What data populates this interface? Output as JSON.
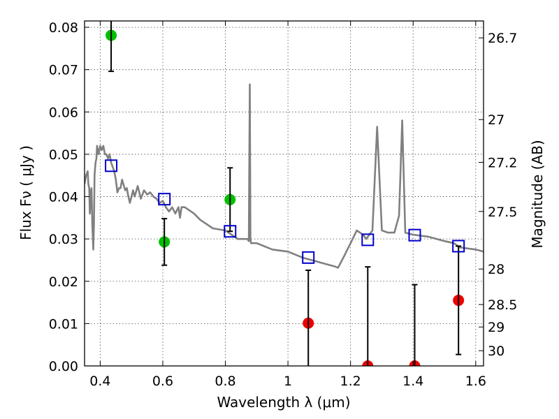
{
  "chart_data": {
    "type": "scatter",
    "xlabel": "Wavelength  λ (μm)",
    "ylabel": "Flux  Fν  ( μJy )",
    "ylabel_right": "Magnitude (AB)",
    "xlim": [
      0.35,
      1.625
    ],
    "ylim": [
      0.0,
      0.0815
    ],
    "grid": true,
    "x_ticks": [
      {
        "value": 0.4,
        "label": "0.4"
      },
      {
        "value": 0.6,
        "label": "0.6"
      },
      {
        "value": 0.8,
        "label": "0.8"
      },
      {
        "value": 1.0,
        "label": "1"
      },
      {
        "value": 1.2,
        "label": "1.2"
      },
      {
        "value": 1.4,
        "label": "1.4"
      },
      {
        "value": 1.6,
        "label": "1.6"
      }
    ],
    "y_ticks": [
      {
        "value": 0.0,
        "label": "0.00"
      },
      {
        "value": 0.01,
        "label": "0.01"
      },
      {
        "value": 0.02,
        "label": "0.02"
      },
      {
        "value": 0.03,
        "label": "0.03"
      },
      {
        "value": 0.04,
        "label": "0.04"
      },
      {
        "value": 0.05,
        "label": "0.05"
      },
      {
        "value": 0.06,
        "label": "0.06"
      },
      {
        "value": 0.07,
        "label": "0.07"
      },
      {
        "value": 0.08,
        "label": "0.08"
      }
    ],
    "right_ticks": [
      {
        "flux": 0.0775,
        "label": "26.7"
      },
      {
        "flux": 0.0582,
        "label": "27"
      },
      {
        "flux": 0.0481,
        "label": "27.2"
      },
      {
        "flux": 0.0365,
        "label": "27.5"
      },
      {
        "flux": 0.0229,
        "label": "28"
      },
      {
        "flux": 0.0145,
        "label": "28.5"
      },
      {
        "flux": 0.0092,
        "label": "29"
      },
      {
        "flux": 0.0036,
        "label": "30"
      }
    ],
    "series": [
      {
        "kind": "model-spectrum",
        "color": "#808080",
        "x": [
          0.35,
          0.355,
          0.36,
          0.362,
          0.365,
          0.367,
          0.37,
          0.372,
          0.375,
          0.378,
          0.38,
          0.382,
          0.385,
          0.388,
          0.39,
          0.395,
          0.4,
          0.405,
          0.41,
          0.415,
          0.42,
          0.425,
          0.43,
          0.435,
          0.44,
          0.445,
          0.45,
          0.455,
          0.46,
          0.465,
          0.47,
          0.48,
          0.485,
          0.49,
          0.495,
          0.5,
          0.505,
          0.51,
          0.52,
          0.53,
          0.54,
          0.55,
          0.56,
          0.57,
          0.58,
          0.59,
          0.6,
          0.61,
          0.62,
          0.63,
          0.64,
          0.65,
          0.655,
          0.66,
          0.67,
          0.68,
          0.7,
          0.72,
          0.74,
          0.76,
          0.8,
          0.84,
          0.85,
          0.87,
          0.875,
          0.878,
          0.88,
          0.882,
          0.885,
          0.9,
          0.95,
          1.0,
          1.05,
          1.1,
          1.15,
          1.16,
          1.18,
          1.2,
          1.22,
          1.24,
          1.25,
          1.27,
          1.285,
          1.3,
          1.32,
          1.34,
          1.355,
          1.365,
          1.375,
          1.4,
          1.45,
          1.5,
          1.53,
          1.55,
          1.6,
          1.625
        ],
        "y": [
          0.043,
          0.045,
          0.046,
          0.043,
          0.042,
          0.036,
          0.041,
          0.042,
          0.033,
          0.0275,
          0.033,
          0.045,
          0.048,
          0.049,
          0.052,
          0.05,
          0.052,
          0.051,
          0.052,
          0.05,
          0.05,
          0.049,
          0.05,
          0.048,
          0.047,
          0.046,
          0.044,
          0.041,
          0.042,
          0.042,
          0.044,
          0.0415,
          0.042,
          0.04,
          0.0385,
          0.04,
          0.0415,
          0.04,
          0.0425,
          0.0395,
          0.0415,
          0.0405,
          0.041,
          0.04,
          0.0395,
          0.0385,
          0.039,
          0.0375,
          0.0365,
          0.0375,
          0.036,
          0.0375,
          0.035,
          0.0375,
          0.0375,
          0.037,
          0.036,
          0.0345,
          0.0335,
          0.0325,
          0.032,
          0.03,
          0.03,
          0.03,
          0.0295,
          0.0665,
          0.03,
          0.029,
          0.029,
          0.029,
          0.0275,
          0.027,
          0.0255,
          0.0245,
          0.0235,
          0.0232,
          0.026,
          0.029,
          0.032,
          0.031,
          0.03,
          0.032,
          0.0565,
          0.032,
          0.0315,
          0.0315,
          0.0355,
          0.058,
          0.0315,
          0.031,
          0.0305,
          0.0295,
          0.029,
          0.028,
          0.0275,
          0.027
        ]
      },
      {
        "kind": "model-photometry",
        "color": "#0000cc",
        "x": [
          0.435,
          0.605,
          0.815,
          1.065,
          1.255,
          1.405,
          1.545
        ],
        "y": [
          0.0473,
          0.0394,
          0.0318,
          0.0256,
          0.0298,
          0.0309,
          0.0283
        ]
      },
      {
        "kind": "detections",
        "color": "#00c000",
        "x": [
          0.435,
          0.605,
          0.815
        ],
        "y": [
          0.0781,
          0.0293,
          0.0393
        ],
        "err_low": [
          0.0085,
          0.0055,
          0.0075
        ],
        "err_high": [
          0.0085,
          0.0055,
          0.0075
        ]
      },
      {
        "kind": "non-detections",
        "color": "#ee0000",
        "x": [
          1.065,
          1.255,
          1.405,
          1.545
        ],
        "y": [
          0.0101,
          0.0,
          0.0,
          0.0155
        ],
        "err_low": [
          0.0101,
          0.0,
          0.0,
          0.0128
        ],
        "err_high": [
          0.0125,
          0.0234,
          0.0192,
          0.0128
        ]
      }
    ]
  }
}
